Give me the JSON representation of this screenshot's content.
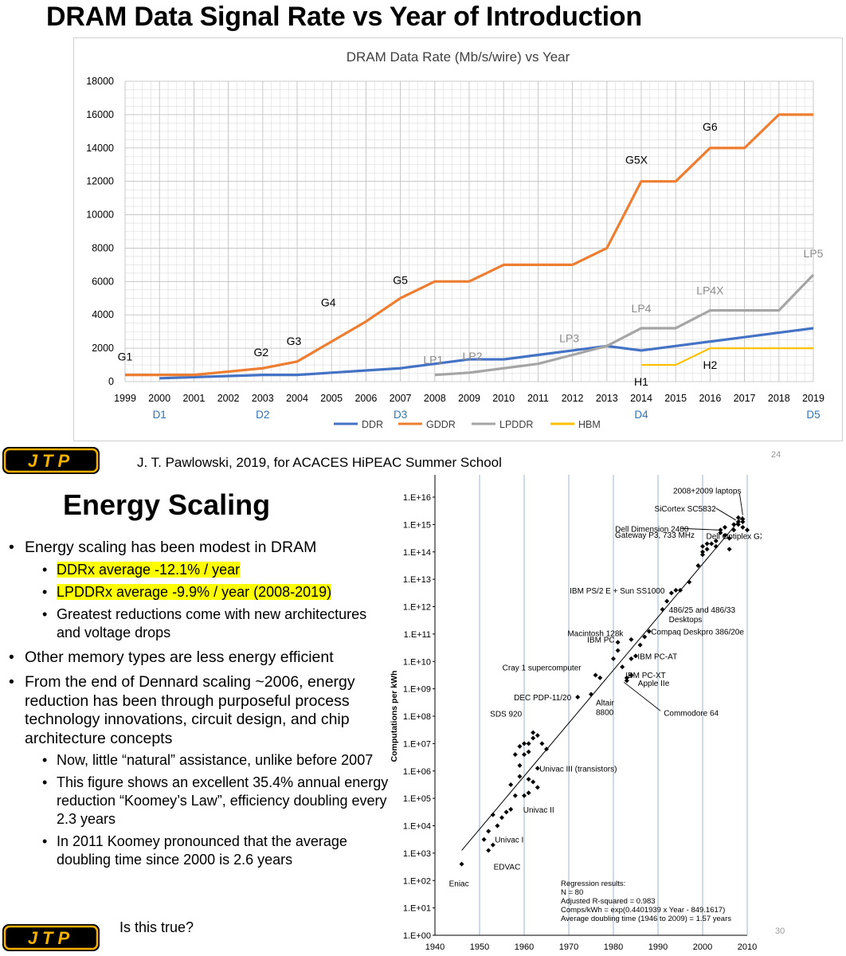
{
  "slide1": {
    "title": "DRAM Data Signal Rate vs Year of Introduction",
    "credit": "J. T.  Pawlowski, 2019, for ACACES HiPEAC Summer School",
    "page_number": "24",
    "logo_text": "JTP"
  },
  "slide2": {
    "title": "Energy Scaling",
    "page_number": "30",
    "logo_text": "JTP",
    "bullets": [
      {
        "text": "Energy scaling has been modest in DRAM",
        "sub": [
          {
            "text": "DDRx average -12.1% / year",
            "highlight": true
          },
          {
            "text": "LPDDRx average -9.9% / year (2008-2019)",
            "highlight": true
          },
          {
            "text": "Greatest reductions come with new architectures and voltage drops",
            "highlight": false
          }
        ]
      },
      {
        "text": "Other memory types are less energy efficient",
        "sub": []
      },
      {
        "text": "From the end of Dennard scaling ~2006, energy reduction has been through purposeful process technology innovations, circuit design, and chip architecture concepts",
        "sub": [
          {
            "text": "Now, little “natural” assistance, unlike before 2007",
            "highlight": false
          },
          {
            "text": "This figure shows an excellent 35.4% annual energy reduction “Koomey’s Law”, efficiency doubling every 2.3 years",
            "highlight": false
          },
          {
            "text": "In 2011 Koomey pronounced that the average doubling time since 2000 is 2.6 years",
            "highlight": false
          }
        ]
      }
    ],
    "tail_text": "Is this true?"
  },
  "chart_data": [
    {
      "type": "line",
      "title": "DRAM Data Rate (Mb/s/wire) vs Year",
      "xlabel": "",
      "ylabel": "",
      "x": [
        1999,
        2000,
        2001,
        2002,
        2003,
        2004,
        2005,
        2006,
        2007,
        2008,
        2009,
        2010,
        2011,
        2012,
        2013,
        2014,
        2015,
        2016,
        2017,
        2018,
        2019
      ],
      "ylim": [
        0,
        18000
      ],
      "yticks": [
        0,
        2000,
        4000,
        6000,
        8000,
        10000,
        12000,
        14000,
        16000,
        18000
      ],
      "grid": true,
      "legend": "bottom",
      "colors": {
        "DDR": "#4472c4",
        "GDDR": "#ed7d31",
        "LPDDR": "#a5a5a5",
        "HBM": "#ffc000"
      },
      "series": [
        {
          "name": "DDR",
          "x": [
            2000,
            2001,
            2002,
            2003,
            2004,
            2005,
            2006,
            2007,
            2008,
            2009,
            2010,
            2011,
            2012,
            2013,
            2014,
            2015,
            2016,
            2017,
            2018,
            2019
          ],
          "values": [
            200,
            266,
            333,
            400,
            400,
            533,
            667,
            800,
            1066,
            1333,
            1333,
            1600,
            1866,
            2133,
            1866,
            2133,
            2400,
            2666,
            2933,
            3200
          ]
        },
        {
          "name": "GDDR",
          "x": [
            1999,
            2000,
            2001,
            2002,
            2003,
            2004,
            2005,
            2006,
            2007,
            2008,
            2009,
            2010,
            2011,
            2012,
            2013,
            2014,
            2015,
            2016,
            2017,
            2018,
            2019
          ],
          "values": [
            400,
            400,
            400,
            600,
            800,
            1200,
            2400,
            3600,
            5000,
            6000,
            6000,
            7000,
            7000,
            7000,
            8000,
            12000,
            12000,
            14000,
            14000,
            16000,
            16000
          ]
        },
        {
          "name": "LPDDR",
          "x": [
            2008,
            2009,
            2010,
            2011,
            2012,
            2013,
            2014,
            2015,
            2016,
            2017,
            2018,
            2019
          ],
          "values": [
            400,
            533,
            800,
            1066,
            1600,
            2133,
            3200,
            3200,
            4266,
            4266,
            4266,
            6400
          ]
        },
        {
          "name": "HBM",
          "x": [
            2014,
            2015,
            2016,
            2017,
            2018,
            2019
          ],
          "values": [
            1000,
            1000,
            2000,
            2000,
            2000,
            2000
          ]
        }
      ],
      "annotations": [
        {
          "text": "G1",
          "x": 1999,
          "y": 400,
          "color": "#000000"
        },
        {
          "text": "G2",
          "x": 2003,
          "y": 800,
          "color": "#000000"
        },
        {
          "text": "G3",
          "x": 2004,
          "y": 1200,
          "color": "#000000"
        },
        {
          "text": "G4",
          "x": 2005,
          "y": 2400,
          "color": "#000000"
        },
        {
          "text": "G5",
          "x": 2007,
          "y": 5000,
          "color": "#000000"
        },
        {
          "text": "G5X",
          "x": 2014,
          "y": 12000,
          "color": "#000000"
        },
        {
          "text": "G6",
          "x": 2016,
          "y": 14000,
          "color": "#000000"
        },
        {
          "text": "LP1",
          "x": 2008,
          "y": 400,
          "color": "#8c8c8c"
        },
        {
          "text": "LP2",
          "x": 2009,
          "y": 533,
          "color": "#8c8c8c"
        },
        {
          "text": "LP3",
          "x": 2012,
          "y": 1600,
          "color": "#8c8c8c"
        },
        {
          "text": "LP4",
          "x": 2014,
          "y": 3200,
          "color": "#8c8c8c"
        },
        {
          "text": "LP4X",
          "x": 2016,
          "y": 4266,
          "color": "#8c8c8c"
        },
        {
          "text": "LP5",
          "x": 2019,
          "y": 6400,
          "color": "#8c8c8c"
        },
        {
          "text": "H1",
          "x": 2014,
          "y": 1000,
          "color": "#000000"
        },
        {
          "text": "H2",
          "x": 2016,
          "y": 2000,
          "color": "#000000"
        }
      ],
      "x_marks": [
        {
          "text": "D1",
          "x": 2000
        },
        {
          "text": "D2",
          "x": 2003
        },
        {
          "text": "D3",
          "x": 2007
        },
        {
          "text": "D4",
          "x": 2014
        },
        {
          "text": "D5",
          "x": 2019
        }
      ],
      "x_mark_color": "#2e75b6"
    },
    {
      "type": "scatter",
      "title": "",
      "xlabel": "",
      "ylabel": "Computations per kWh",
      "xlim": [
        1940,
        2010
      ],
      "xticks": [
        1940,
        1950,
        1960,
        1970,
        1980,
        1990,
        2000,
        2010
      ],
      "ylim_log10": [
        0,
        16
      ],
      "ytick_labels": [
        "1.E+00",
        "1.E+01",
        "1.E+02",
        "1.E+03",
        "1.E+04",
        "1.E+05",
        "1.E+06",
        "1.E+07",
        "1.E+08",
        "1.E+09",
        "1.E+10",
        "1.E+11",
        "1.E+12",
        "1.E+13",
        "1.E+14",
        "1.E+15",
        "1.E+16"
      ],
      "grid": "vertical",
      "points_log10": [
        [
          1946,
          2.6
        ],
        [
          1951,
          3.5
        ],
        [
          1952,
          3.1
        ],
        [
          1953,
          3.3
        ],
        [
          1952,
          3.8
        ],
        [
          1953,
          4.4
        ],
        [
          1954,
          4.0
        ],
        [
          1955,
          4.3
        ],
        [
          1956,
          4.5
        ],
        [
          1957,
          5.5
        ],
        [
          1957,
          4.6
        ],
        [
          1958,
          5.1
        ],
        [
          1959,
          5.8
        ],
        [
          1959,
          6.2
        ],
        [
          1958,
          6.6
        ],
        [
          1959,
          6.9
        ],
        [
          1960,
          7.0
        ],
        [
          1960,
          6.6
        ],
        [
          1961,
          6.7
        ],
        [
          1961,
          7.0
        ],
        [
          1962,
          7.2
        ],
        [
          1962,
          7.4
        ],
        [
          1963,
          7.3
        ],
        [
          1964,
          7.0
        ],
        [
          1960,
          5.1
        ],
        [
          1961,
          5.2
        ],
        [
          1962,
          5.6
        ],
        [
          1963,
          6.1
        ],
        [
          1961,
          5.7
        ],
        [
          1965,
          6.8
        ],
        [
          1963,
          5.4
        ],
        [
          1972,
          8.7
        ],
        [
          1975,
          8.8
        ],
        [
          1976,
          9.5
        ],
        [
          1977,
          9.4
        ],
        [
          1980,
          10.1
        ],
        [
          1981,
          10.4
        ],
        [
          1981,
          10.7
        ],
        [
          1982,
          9.8
        ],
        [
          1983,
          9.4
        ],
        [
          1983,
          9.3
        ],
        [
          1984,
          9.5
        ],
        [
          1984,
          10.1
        ],
        [
          1985,
          10.2
        ],
        [
          1984,
          10.8
        ],
        [
          1986,
          10.6
        ],
        [
          1987,
          10.9
        ],
        [
          1988,
          11.1
        ],
        [
          1991,
          11.9
        ],
        [
          1992,
          12.2
        ],
        [
          1993,
          12.5
        ],
        [
          1994,
          12.6
        ],
        [
          1995,
          12.6
        ],
        [
          1997,
          12.9
        ],
        [
          1999,
          13.5
        ],
        [
          2000,
          13.9
        ],
        [
          2000,
          14.0
        ],
        [
          2000,
          14.2
        ],
        [
          2001,
          14.1
        ],
        [
          2001,
          14.3
        ],
        [
          2002,
          14.3
        ],
        [
          2003,
          14.2
        ],
        [
          2003,
          14.4
        ],
        [
          2004,
          14.7
        ],
        [
          2004,
          14.8
        ],
        [
          2005,
          14.6
        ],
        [
          2005,
          14.9
        ],
        [
          2006,
          14.5
        ],
        [
          2006,
          14.1
        ],
        [
          2007,
          14.8
        ],
        [
          2007,
          15.0
        ],
        [
          2008,
          15.0
        ],
        [
          2008,
          15.1
        ],
        [
          2009,
          15.1
        ],
        [
          2009,
          14.9
        ],
        [
          2009,
          15.2
        ],
        [
          2010,
          14.8
        ],
        [
          2008,
          15.25
        ]
      ],
      "regression": {
        "x": [
          1946,
          2009
        ],
        "y_log10": [
          3.1,
          15.3
        ]
      },
      "labels": [
        {
          "text": "Eniac",
          "x": 1946,
          "y": 2.6
        },
        {
          "text": "EDVAC",
          "x": 1951,
          "y": 3.1
        },
        {
          "text": "Univac I",
          "x": 1952,
          "y": 3.5
        },
        {
          "text": "Univac II",
          "x": 1958,
          "y": 4.6
        },
        {
          "text": "Univac III (transistors)",
          "x": 1962,
          "y": 6.1
        },
        {
          "text": "SDS 920",
          "x": 1962,
          "y": 7.4
        },
        {
          "text": "DEC PDP-11/20",
          "x": 1972,
          "y": 8.7
        },
        {
          "text": "Altair 8800",
          "x": 1975,
          "y": 8.8
        },
        {
          "text": "Cray 1 supercomputer",
          "x": 1976,
          "y": 9.5
        },
        {
          "text": "Macintosh 128k",
          "x": 1984,
          "y": 10.9
        },
        {
          "text": "IBM PC",
          "x": 1981,
          "y": 10.4
        },
        {
          "text": "IBM PC-AT",
          "x": 1984,
          "y": 10.2
        },
        {
          "text": "IBM PC-XT",
          "x": 1982,
          "y": 9.8
        },
        {
          "text": "Apple IIe",
          "x": 1983,
          "y": 9.4
        },
        {
          "text": "Commodore 64",
          "x": 1982,
          "y": 9.3
        },
        {
          "text": "Compaq Deskpro 386/20e",
          "x": 1987,
          "y": 11.1
        },
        {
          "text": "486/25 and 486/33 Desktops",
          "x": 1991,
          "y": 11.9
        },
        {
          "text": "IBM PS/2 E + Sun SS1000",
          "x": 1994,
          "y": 12.6
        },
        {
          "text": "Dell Optiplex GXI",
          "x": 1997,
          "y": 12.9
        },
        {
          "text": "Gateway P3, 733 MHz",
          "x": 2000,
          "y": 14.0
        },
        {
          "text": "Dell Dimension 2400",
          "x": 2004,
          "y": 14.8
        },
        {
          "text": "SiCortex SC5832",
          "x": 2008,
          "y": 15.1
        },
        {
          "text": "2008+2009 laptops",
          "x": 2009,
          "y": 15.2
        }
      ],
      "regression_text": [
        "Regression results:",
        "N = 80",
        "Adjusted R-squared = 0.983",
        "Comps/kWh = exp(0.4401939 x Year - 849.1617)",
        "Average doubling time (1946 to 2009) = 1.57 years"
      ]
    }
  ]
}
